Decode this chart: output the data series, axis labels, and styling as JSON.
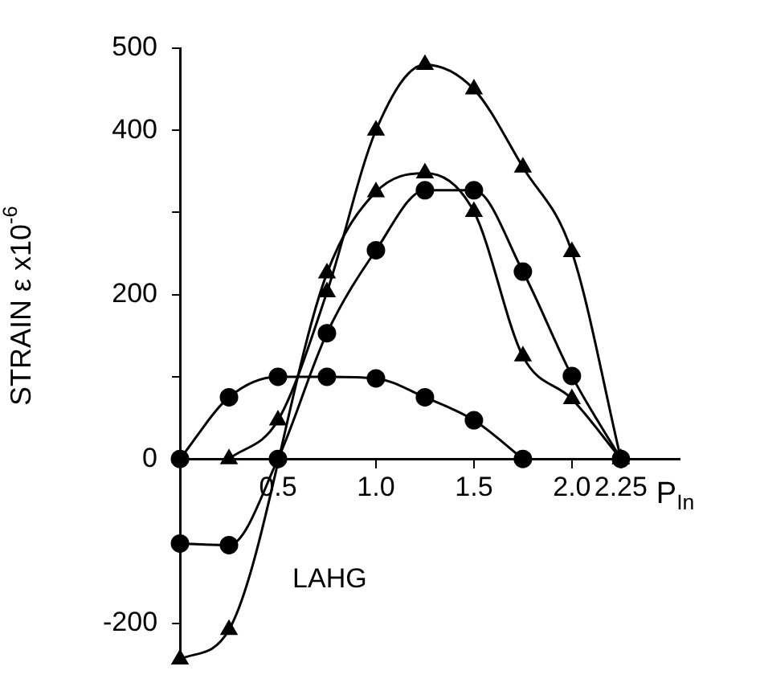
{
  "chart_data": {
    "type": "line",
    "xlabel": "P$_{In}$",
    "ylabel": "STRAIN ε x10$^{-6}$",
    "annotations": [
      "LAHG"
    ],
    "series": [
      {
        "color": "#000000",
        "marker": "circle",
        "x": [
          0,
          0.25,
          0.5,
          0.75,
          1.0,
          1.25,
          1.5,
          1.75
        ],
        "values": [
          0,
          75,
          100,
          100,
          98,
          75,
          47,
          0
        ]
      },
      {
        "color": "#000000",
        "marker": "triangle",
        "x": [
          0.25,
          0.5,
          0.75,
          1.0,
          1.25,
          1.5,
          1.75,
          2.0,
          2.25
        ],
        "values": [
          0,
          47,
          203,
          400,
          480,
          450,
          355,
          252,
          0
        ]
      },
      {
        "color": "#000000",
        "marker": "circle",
        "x": [
          0,
          0.25,
          0.5,
          0.75,
          1.0,
          1.25,
          1.5,
          1.75,
          2.0,
          2.25
        ],
        "values": [
          -103,
          -105,
          0,
          153,
          254,
          327,
          327,
          228,
          101,
          0
        ]
      },
      {
        "color": "#000000",
        "marker": "triangle",
        "x": [
          0,
          0.25,
          0.75,
          1.0,
          1.25,
          1.5,
          1.75,
          2.0,
          2.25
        ],
        "values": [
          -244,
          -208,
          226,
          325,
          348,
          301,
          125,
          73,
          0
        ]
      }
    ],
    "xlim": [
      0,
      2.55
    ],
    "ylim": [
      -245,
      500
    ],
    "xticks": [
      {
        "value": 0.5,
        "label": "0.5"
      },
      {
        "value": 1.0,
        "label": "1.0"
      },
      1.5,
      {
        "value": 2.0,
        "label": "2.0"
      },
      2.25
    ],
    "yticks": [
      {
        "value": -200,
        "label": "-200"
      },
      {
        "value": -100,
        "label": null
      },
      0,
      {
        "value": 100,
        "label": null
      },
      200,
      {
        "value": 300,
        "label": null
      },
      400,
      500
    ],
    "grid": false,
    "legend": false
  }
}
